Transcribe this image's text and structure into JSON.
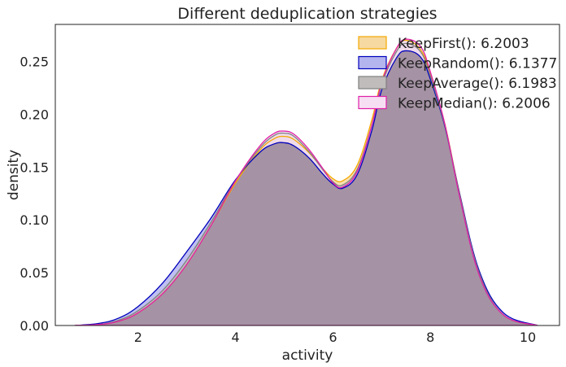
{
  "chart_data": {
    "type": "area",
    "title": "Different deduplication strategies",
    "xlabel": "activity",
    "ylabel": "density",
    "xlim": [
      0.3,
      10.65
    ],
    "ylim": [
      0,
      0.285
    ],
    "xticks": [
      2,
      4,
      6,
      8,
      10
    ],
    "yticks": [
      0.0,
      0.05,
      0.1,
      0.15,
      0.2,
      0.25
    ],
    "grid": false,
    "legend_position": "top-right",
    "series": [
      {
        "name": "KeepFirst(): 6.2003",
        "fill": "#f6d9a0",
        "stroke": "#f5a800",
        "x": [
          0.7,
          1.2,
          1.6,
          2.0,
          2.5,
          3.0,
          3.5,
          4.0,
          4.5,
          4.8,
          5.0,
          5.2,
          5.5,
          5.8,
          6.0,
          6.2,
          6.5,
          6.8,
          7.0,
          7.3,
          7.5,
          7.8,
          8.0,
          8.3,
          8.6,
          9.0,
          9.5,
          10.2
        ],
        "y": [
          0.0,
          0.001,
          0.004,
          0.012,
          0.03,
          0.058,
          0.095,
          0.135,
          0.166,
          0.177,
          0.179,
          0.176,
          0.164,
          0.148,
          0.139,
          0.137,
          0.152,
          0.195,
          0.232,
          0.262,
          0.27,
          0.261,
          0.238,
          0.19,
          0.125,
          0.05,
          0.01,
          0.0
        ]
      },
      {
        "name": "KeepRandom(): 6.1377",
        "fill": "#b4b4ef",
        "stroke": "#0000bb",
        "x": [
          0.7,
          1.2,
          1.6,
          2.0,
          2.5,
          3.0,
          3.5,
          4.0,
          4.5,
          4.8,
          5.0,
          5.2,
          5.5,
          5.8,
          6.0,
          6.2,
          6.5,
          6.8,
          7.0,
          7.3,
          7.5,
          7.8,
          8.0,
          8.3,
          8.6,
          9.0,
          9.5,
          10.2
        ],
        "y": [
          0.0,
          0.002,
          0.007,
          0.018,
          0.04,
          0.07,
          0.102,
          0.138,
          0.164,
          0.172,
          0.173,
          0.17,
          0.159,
          0.143,
          0.134,
          0.13,
          0.143,
          0.185,
          0.223,
          0.253,
          0.26,
          0.254,
          0.233,
          0.188,
          0.125,
          0.052,
          0.012,
          0.0
        ]
      },
      {
        "name": "KeepAverage(): 6.1983",
        "fill": "#c0bcbc",
        "stroke": "#808080",
        "x": [
          0.7,
          1.2,
          1.6,
          2.0,
          2.5,
          3.0,
          3.5,
          4.0,
          4.5,
          4.8,
          5.0,
          5.2,
          5.5,
          5.8,
          6.0,
          6.2,
          6.5,
          6.8,
          7.0,
          7.3,
          7.5,
          7.8,
          8.0,
          8.3,
          8.6,
          9.0,
          9.5,
          10.2
        ],
        "y": [
          0.0,
          0.001,
          0.005,
          0.014,
          0.033,
          0.062,
          0.098,
          0.137,
          0.168,
          0.18,
          0.182,
          0.179,
          0.165,
          0.147,
          0.136,
          0.133,
          0.148,
          0.19,
          0.228,
          0.259,
          0.267,
          0.259,
          0.236,
          0.189,
          0.124,
          0.05,
          0.01,
          0.0
        ]
      },
      {
        "name": "KeepMedian(): 6.2006",
        "fill": "#f7dff3",
        "stroke": "#e020a8",
        "x": [
          0.7,
          1.2,
          1.6,
          2.0,
          2.5,
          3.0,
          3.5,
          4.0,
          4.5,
          4.8,
          5.0,
          5.2,
          5.5,
          5.8,
          6.0,
          6.2,
          6.5,
          6.8,
          7.0,
          7.3,
          7.5,
          7.8,
          8.0,
          8.3,
          8.6,
          9.0,
          9.5,
          10.2
        ],
        "y": [
          0.0,
          0.001,
          0.004,
          0.012,
          0.03,
          0.058,
          0.095,
          0.137,
          0.17,
          0.182,
          0.184,
          0.181,
          0.167,
          0.148,
          0.135,
          0.131,
          0.146,
          0.19,
          0.23,
          0.262,
          0.271,
          0.264,
          0.24,
          0.19,
          0.122,
          0.048,
          0.01,
          0.0
        ]
      }
    ],
    "overlap_fill": "#a592a4"
  }
}
